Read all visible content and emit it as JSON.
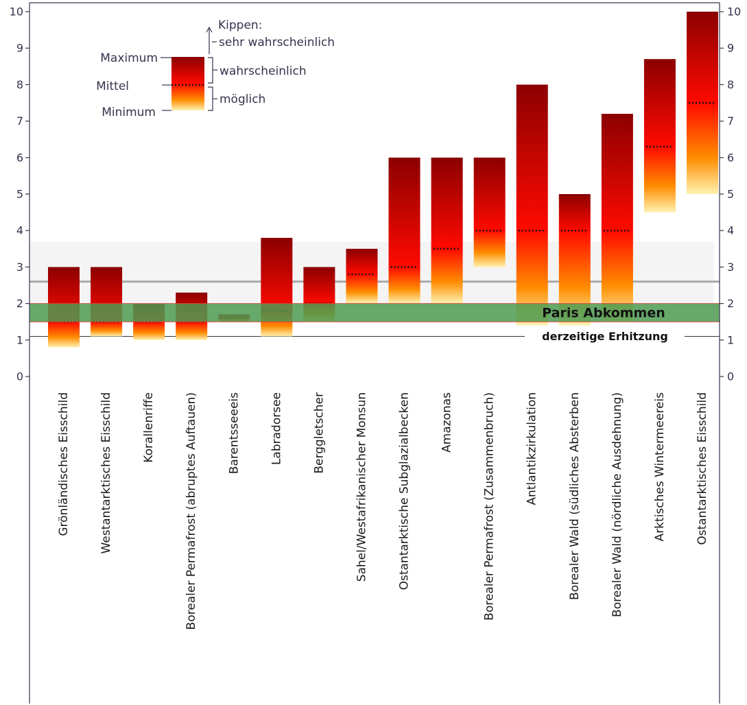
{
  "chart_data": {
    "type": "bar",
    "ylim": [
      0,
      10
    ],
    "y_ticks": [
      "0",
      "1",
      "2",
      "3",
      "4",
      "5",
      "6",
      "7",
      "8",
      "9",
      "10"
    ],
    "categories": [
      "Grönländisches Eisschild",
      "Westantarktisches Eisschild",
      "Korallenriffe",
      "Borealer Permafrost (abruptes Auftauen)",
      "Barentsseeeis",
      "Labradorsee",
      "Berggletscher",
      "Sahel/Westafrikanischer Monsun",
      "Ostantarktische Subglazialbecken",
      "Amazonas",
      "Borealer Permafrost (Zusammenbruch)",
      "Antlantikzirkulation",
      "Borealer Wald (südliches Absterben",
      "Borealer Wald (nördliche Ausdehnung)",
      "Arktisches Wintermeereis",
      "Ostantarktisches Eisschild"
    ],
    "series": [
      {
        "key": "min",
        "values": [
          0.8,
          1.1,
          1.0,
          1.0,
          1.5,
          1.1,
          1.5,
          2.0,
          2.0,
          2.0,
          3.0,
          1.4,
          1.4,
          1.5,
          4.5,
          5.0
        ]
      },
      {
        "key": "mean",
        "values": [
          1.5,
          1.5,
          1.5,
          1.5,
          1.6,
          1.8,
          2.0,
          2.8,
          3.0,
          3.5,
          4.0,
          4.0,
          4.0,
          4.0,
          6.3,
          7.5
        ]
      },
      {
        "key": "max",
        "values": [
          3.0,
          3.0,
          2.0,
          2.3,
          1.7,
          3.8,
          3.0,
          3.5,
          6.0,
          6.0,
          6.0,
          8.0,
          5.0,
          7.2,
          8.7,
          10.0
        ]
      }
    ],
    "reference_bands": {
      "paris_label": "Paris Abkommen",
      "paris_range": [
        1.5,
        2.0
      ],
      "projected_band": [
        2.0,
        3.7
      ],
      "projected_line": 2.6
    },
    "current_warming": {
      "label": "derzeitige Erhitzung",
      "value": 1.1
    },
    "legend": {
      "maximum": "Maximum",
      "mean": "Mittel",
      "minimum": "Minimum",
      "tipping": "Kippen:",
      "very_likely": "sehr wahrscheinlich",
      "likely": "wahrscheinlich",
      "possible": "möglich"
    },
    "colors": {
      "dark": "#8b0000",
      "red": "#ff0a00",
      "orange": "#ff8c00",
      "pale": "#fff2b0",
      "paris_fill": "#4c9a50",
      "paris_edge": "#d04a3a",
      "band": "#ececec",
      "line": "#a9a9a9",
      "axis": "#33334d"
    }
  }
}
